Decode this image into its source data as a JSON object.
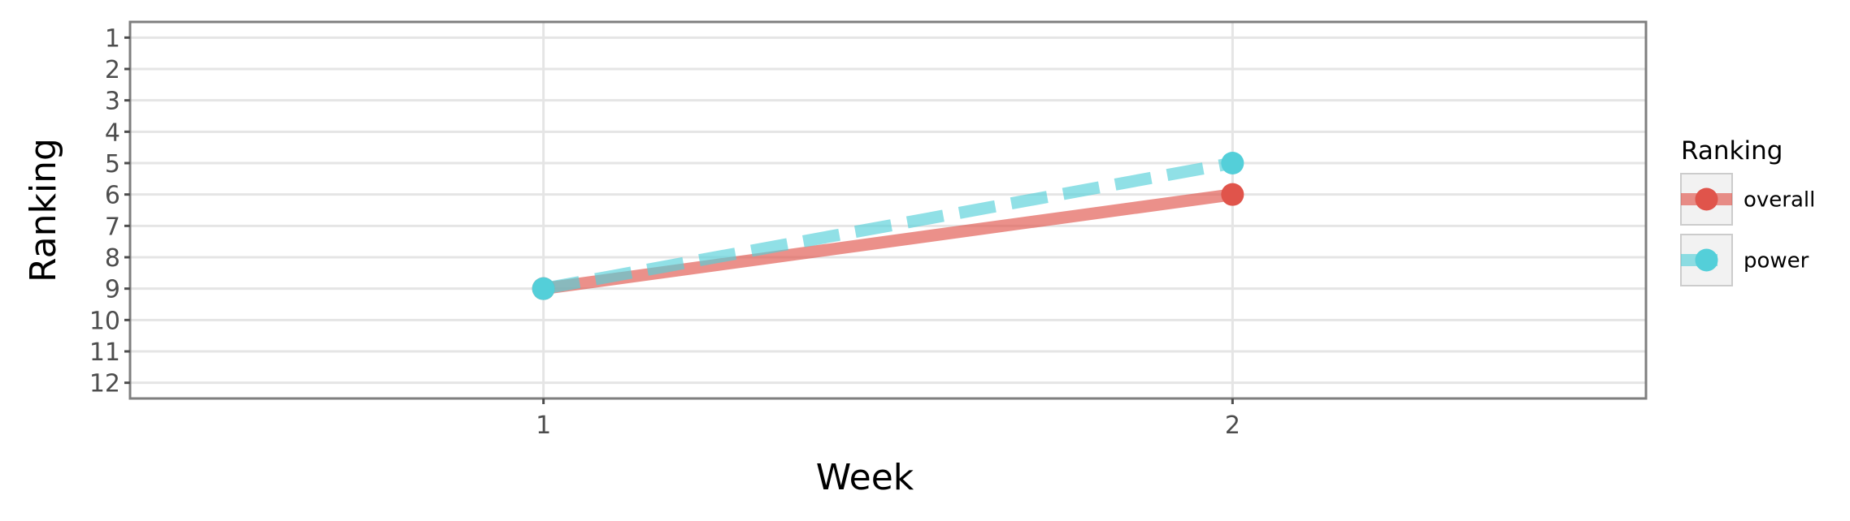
{
  "chart_data": {
    "type": "line",
    "x": [
      1,
      2
    ],
    "x_ticks": [
      "1",
      "2"
    ],
    "xlim": [
      0.4,
      2.6
    ],
    "y_ticks": [
      "1",
      "2",
      "3",
      "4",
      "5",
      "6",
      "7",
      "8",
      "9",
      "10",
      "11",
      "12"
    ],
    "ylim": [
      12.5,
      0.5
    ],
    "y_reversed": true,
    "xlabel": "Week",
    "ylabel": "Ranking",
    "grid": true,
    "legend": {
      "title": "Ranking",
      "placement": "right"
    },
    "series": [
      {
        "name": "overall",
        "values": [
          9,
          6
        ],
        "color": "#e0544b",
        "line_style": "solid"
      },
      {
        "name": "power",
        "values": [
          9,
          5
        ],
        "color": "#54cfd9",
        "line_style": "dashed"
      }
    ]
  }
}
